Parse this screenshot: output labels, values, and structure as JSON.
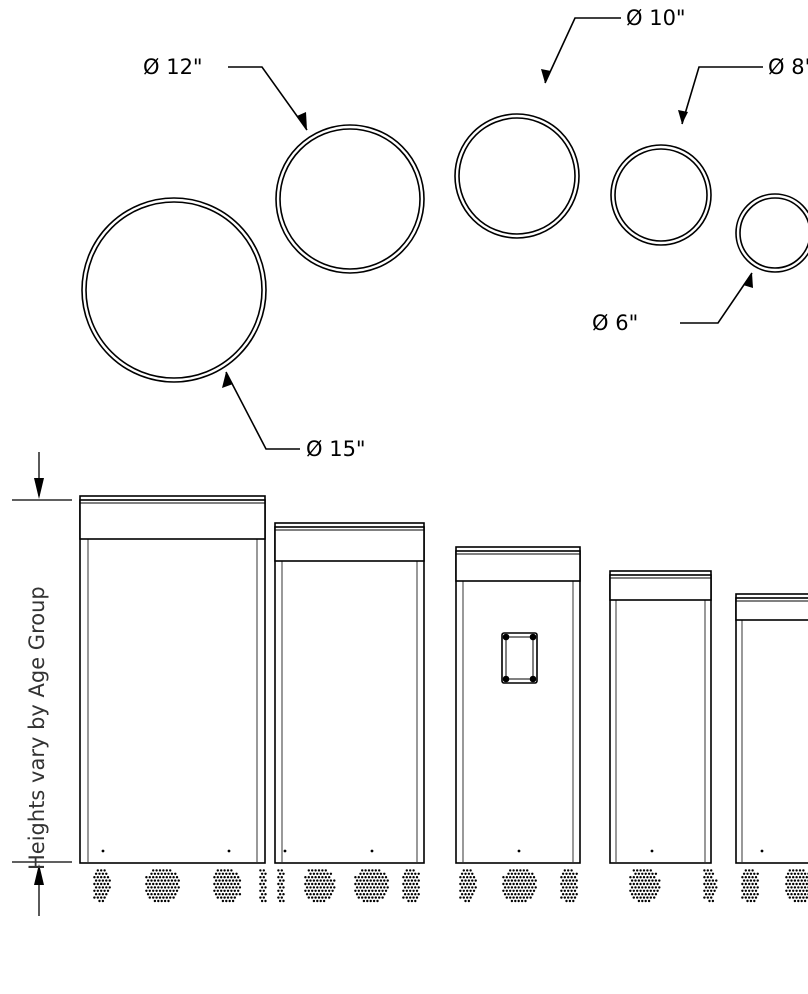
{
  "diameters": [
    {
      "label": "Ø 15\"",
      "inches": 15
    },
    {
      "label": "Ø 12\"",
      "inches": 12
    },
    {
      "label": "Ø 10\"",
      "inches": 10
    },
    {
      "label": "Ø 8\"",
      "inches": 8
    },
    {
      "label": "Ø 6\"",
      "inches": 6
    }
  ],
  "height_note": "Heights vary by Age Group",
  "colors": {
    "line": "#000000",
    "background": "#ffffff"
  }
}
